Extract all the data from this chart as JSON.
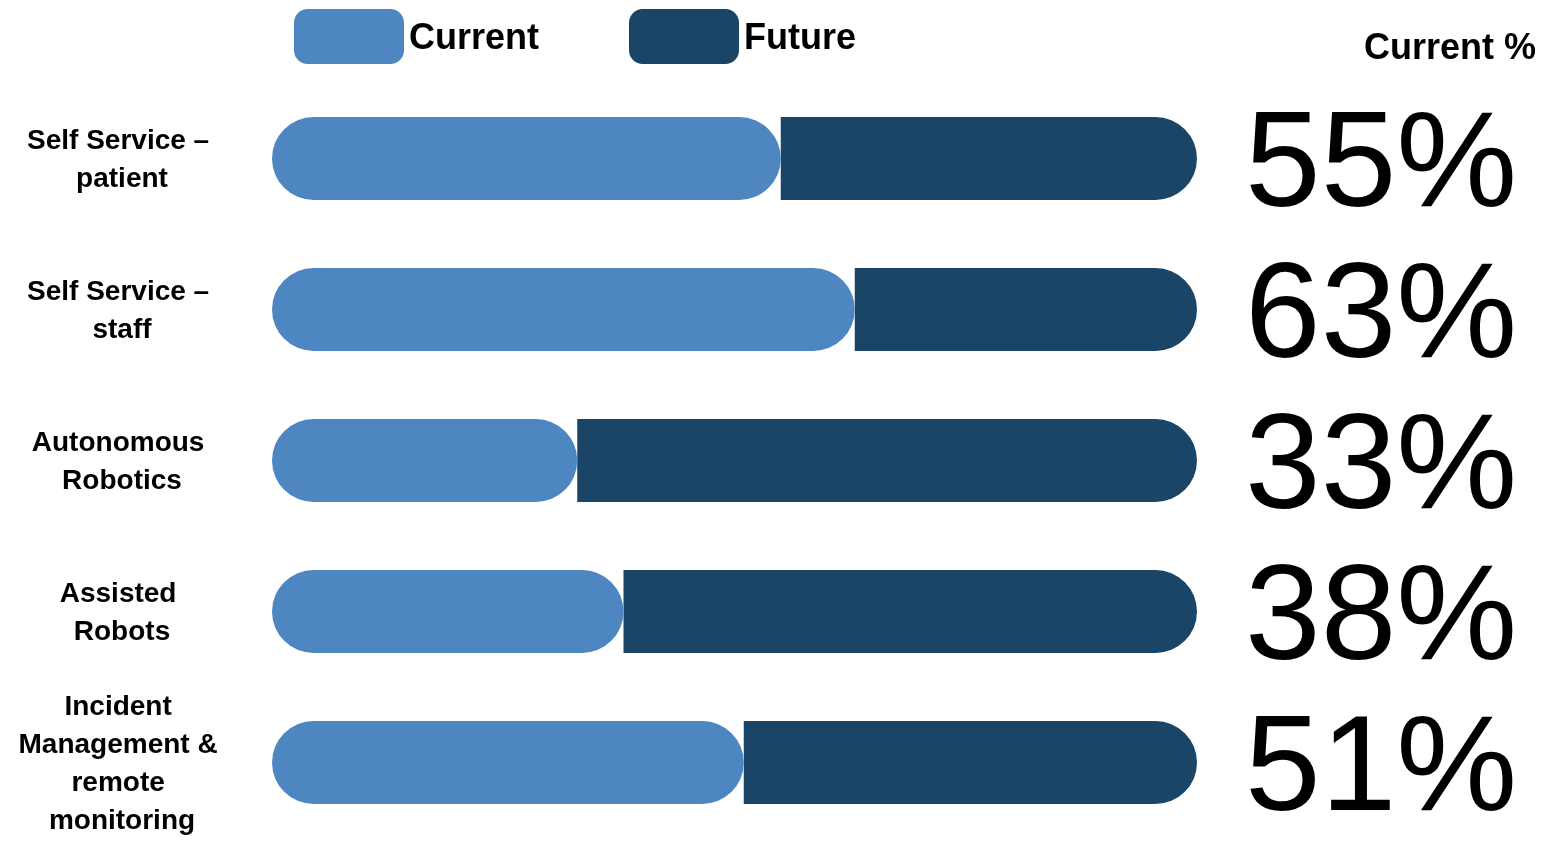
{
  "chart_data": {
    "type": "bar",
    "orientation": "horizontal",
    "stacked": true,
    "categories": [
      "Self Service – patient",
      "Self Service – staff",
      "Autonomous Robotics",
      "Assisted Robots",
      "Incident Management & remote monitoring"
    ],
    "series": [
      {
        "name": "Current",
        "color": "#4e86c1",
        "values": [
          55,
          63,
          33,
          38,
          51
        ],
        "value_labels": [
          "55%",
          "63%",
          "33%",
          "38%",
          "51%"
        ]
      },
      {
        "name": "Future",
        "color": "#1b4567",
        "values": [
          45,
          37,
          67,
          62,
          49
        ]
      }
    ],
    "xlim": [
      0,
      100
    ],
    "tick_labels": "y",
    "grid": false,
    "legend": "top",
    "annotations": [
      "Current %"
    ]
  }
}
